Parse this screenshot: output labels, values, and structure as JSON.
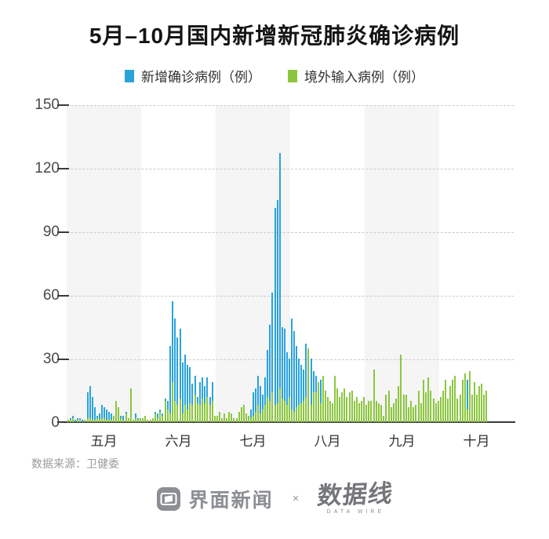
{
  "title": "5月–10月国内新增新冠肺炎确诊病例",
  "legend": [
    {
      "label": "新增确诊病例（例）",
      "color": "#2AA3DB"
    },
    {
      "label": "境外输入病例（例）",
      "color": "#8CC63F"
    }
  ],
  "footer": {
    "source": "数据来源：卫健委"
  },
  "logos": {
    "jiemian": "界面新闻",
    "separator": "×",
    "datawire": "数据线",
    "datawire_sub": "DATA WIRE"
  },
  "chart_data": {
    "type": "bar",
    "title": "5月–10月国内新增新冠肺炎确诊病例",
    "categories": [
      "五月",
      "六月",
      "七月",
      "八月",
      "九月",
      "十月"
    ],
    "ylim": [
      0,
      150
    ],
    "y_ticks": [
      0,
      30,
      60,
      90,
      120,
      150
    ],
    "grid": "dashed-horizontal",
    "band_color": "#f5f5f5",
    "legend_position": "top-center",
    "unit": "例",
    "series": [
      {
        "name": "新增确诊病例（例）",
        "color": "#2AA3DB",
        "monthly_daily_values": {
          "五月": [
            1,
            2,
            3,
            1,
            2,
            2,
            1,
            1,
            14,
            17,
            12,
            7,
            3,
            4,
            8,
            7,
            6,
            5,
            4,
            2,
            4,
            2,
            3,
            3,
            5,
            2,
            2,
            1,
            4,
            2,
            2
          ],
          "六月": [
            2,
            3,
            1,
            1,
            2,
            5,
            4,
            6,
            4,
            11,
            10,
            36,
            57,
            49,
            40,
            44,
            28,
            32,
            27,
            26,
            18,
            22,
            12,
            19,
            21,
            17,
            21,
            12,
            19,
            3
          ],
          "七月": [
            3,
            5,
            2,
            4,
            2,
            5,
            4,
            2,
            2,
            5,
            7,
            8,
            4,
            3,
            6,
            14,
            16,
            22,
            17,
            13,
            21,
            34,
            46,
            61,
            101,
            105,
            127,
            45,
            44,
            33,
            30
          ],
          "八月": [
            49,
            43,
            36,
            30,
            27,
            25,
            37,
            35,
            30,
            24,
            22,
            19,
            20,
            22,
            15,
            12,
            10,
            9,
            22,
            16,
            12,
            14,
            16,
            12,
            14,
            15,
            10,
            12,
            9,
            10,
            12
          ],
          "九月": [
            8,
            10,
            10,
            25,
            10,
            9,
            8,
            3,
            13,
            15,
            7,
            9,
            11,
            17,
            32,
            13,
            13,
            7,
            10,
            7,
            8,
            15,
            9,
            20,
            14,
            21,
            15,
            11,
            9,
            10
          ],
          "十月": [
            12,
            15,
            20,
            11,
            17,
            20,
            22,
            11,
            13,
            20,
            23,
            20,
            24,
            13,
            19,
            13,
            17,
            18,
            13,
            15,
            0,
            0,
            0,
            0,
            0,
            0,
            0,
            0,
            0,
            0,
            0
          ]
        }
      },
      {
        "name": "境外输入病例（例）",
        "color": "#8CC63F",
        "monthly_daily_values": {
          "五月": [
            1,
            1,
            2,
            0,
            1,
            1,
            0,
            1,
            2,
            2,
            1,
            1,
            2,
            1,
            2,
            2,
            1,
            1,
            1,
            3,
            10,
            7,
            2,
            1,
            4,
            2,
            16,
            1,
            2,
            1,
            2
          ],
          "六月": [
            2,
            3,
            1,
            1,
            2,
            4,
            2,
            5,
            3,
            10,
            6,
            4,
            19,
            10,
            8,
            11,
            4,
            8,
            6,
            9,
            8,
            13,
            9,
            8,
            11,
            9,
            12,
            8,
            10,
            3
          ],
          "七月": [
            3,
            5,
            2,
            4,
            2,
            5,
            4,
            2,
            2,
            5,
            7,
            8,
            4,
            3,
            2,
            3,
            5,
            8,
            4,
            6,
            8,
            12,
            10,
            14,
            8,
            9,
            16,
            11,
            10,
            8,
            12
          ],
          "八月": [
            6,
            5,
            7,
            8,
            9,
            10,
            12,
            35,
            8,
            14,
            14,
            19,
            9,
            22,
            15,
            12,
            10,
            9,
            22,
            16,
            12,
            14,
            16,
            12,
            14,
            15,
            10,
            12,
            9,
            10,
            12
          ],
          "九月": [
            8,
            10,
            10,
            25,
            10,
            9,
            8,
            3,
            13,
            15,
            7,
            9,
            11,
            17,
            32,
            13,
            13,
            7,
            10,
            7,
            8,
            15,
            9,
            20,
            14,
            21,
            15,
            11,
            9,
            10
          ],
          "十月": [
            12,
            15,
            20,
            11,
            17,
            20,
            22,
            11,
            13,
            20,
            23,
            6,
            24,
            13,
            19,
            13,
            17,
            18,
            13,
            15,
            0,
            0,
            0,
            0,
            0,
            0,
            0,
            0,
            0,
            0,
            0
          ]
        }
      }
    ],
    "source": "数据来源：卫健委"
  }
}
